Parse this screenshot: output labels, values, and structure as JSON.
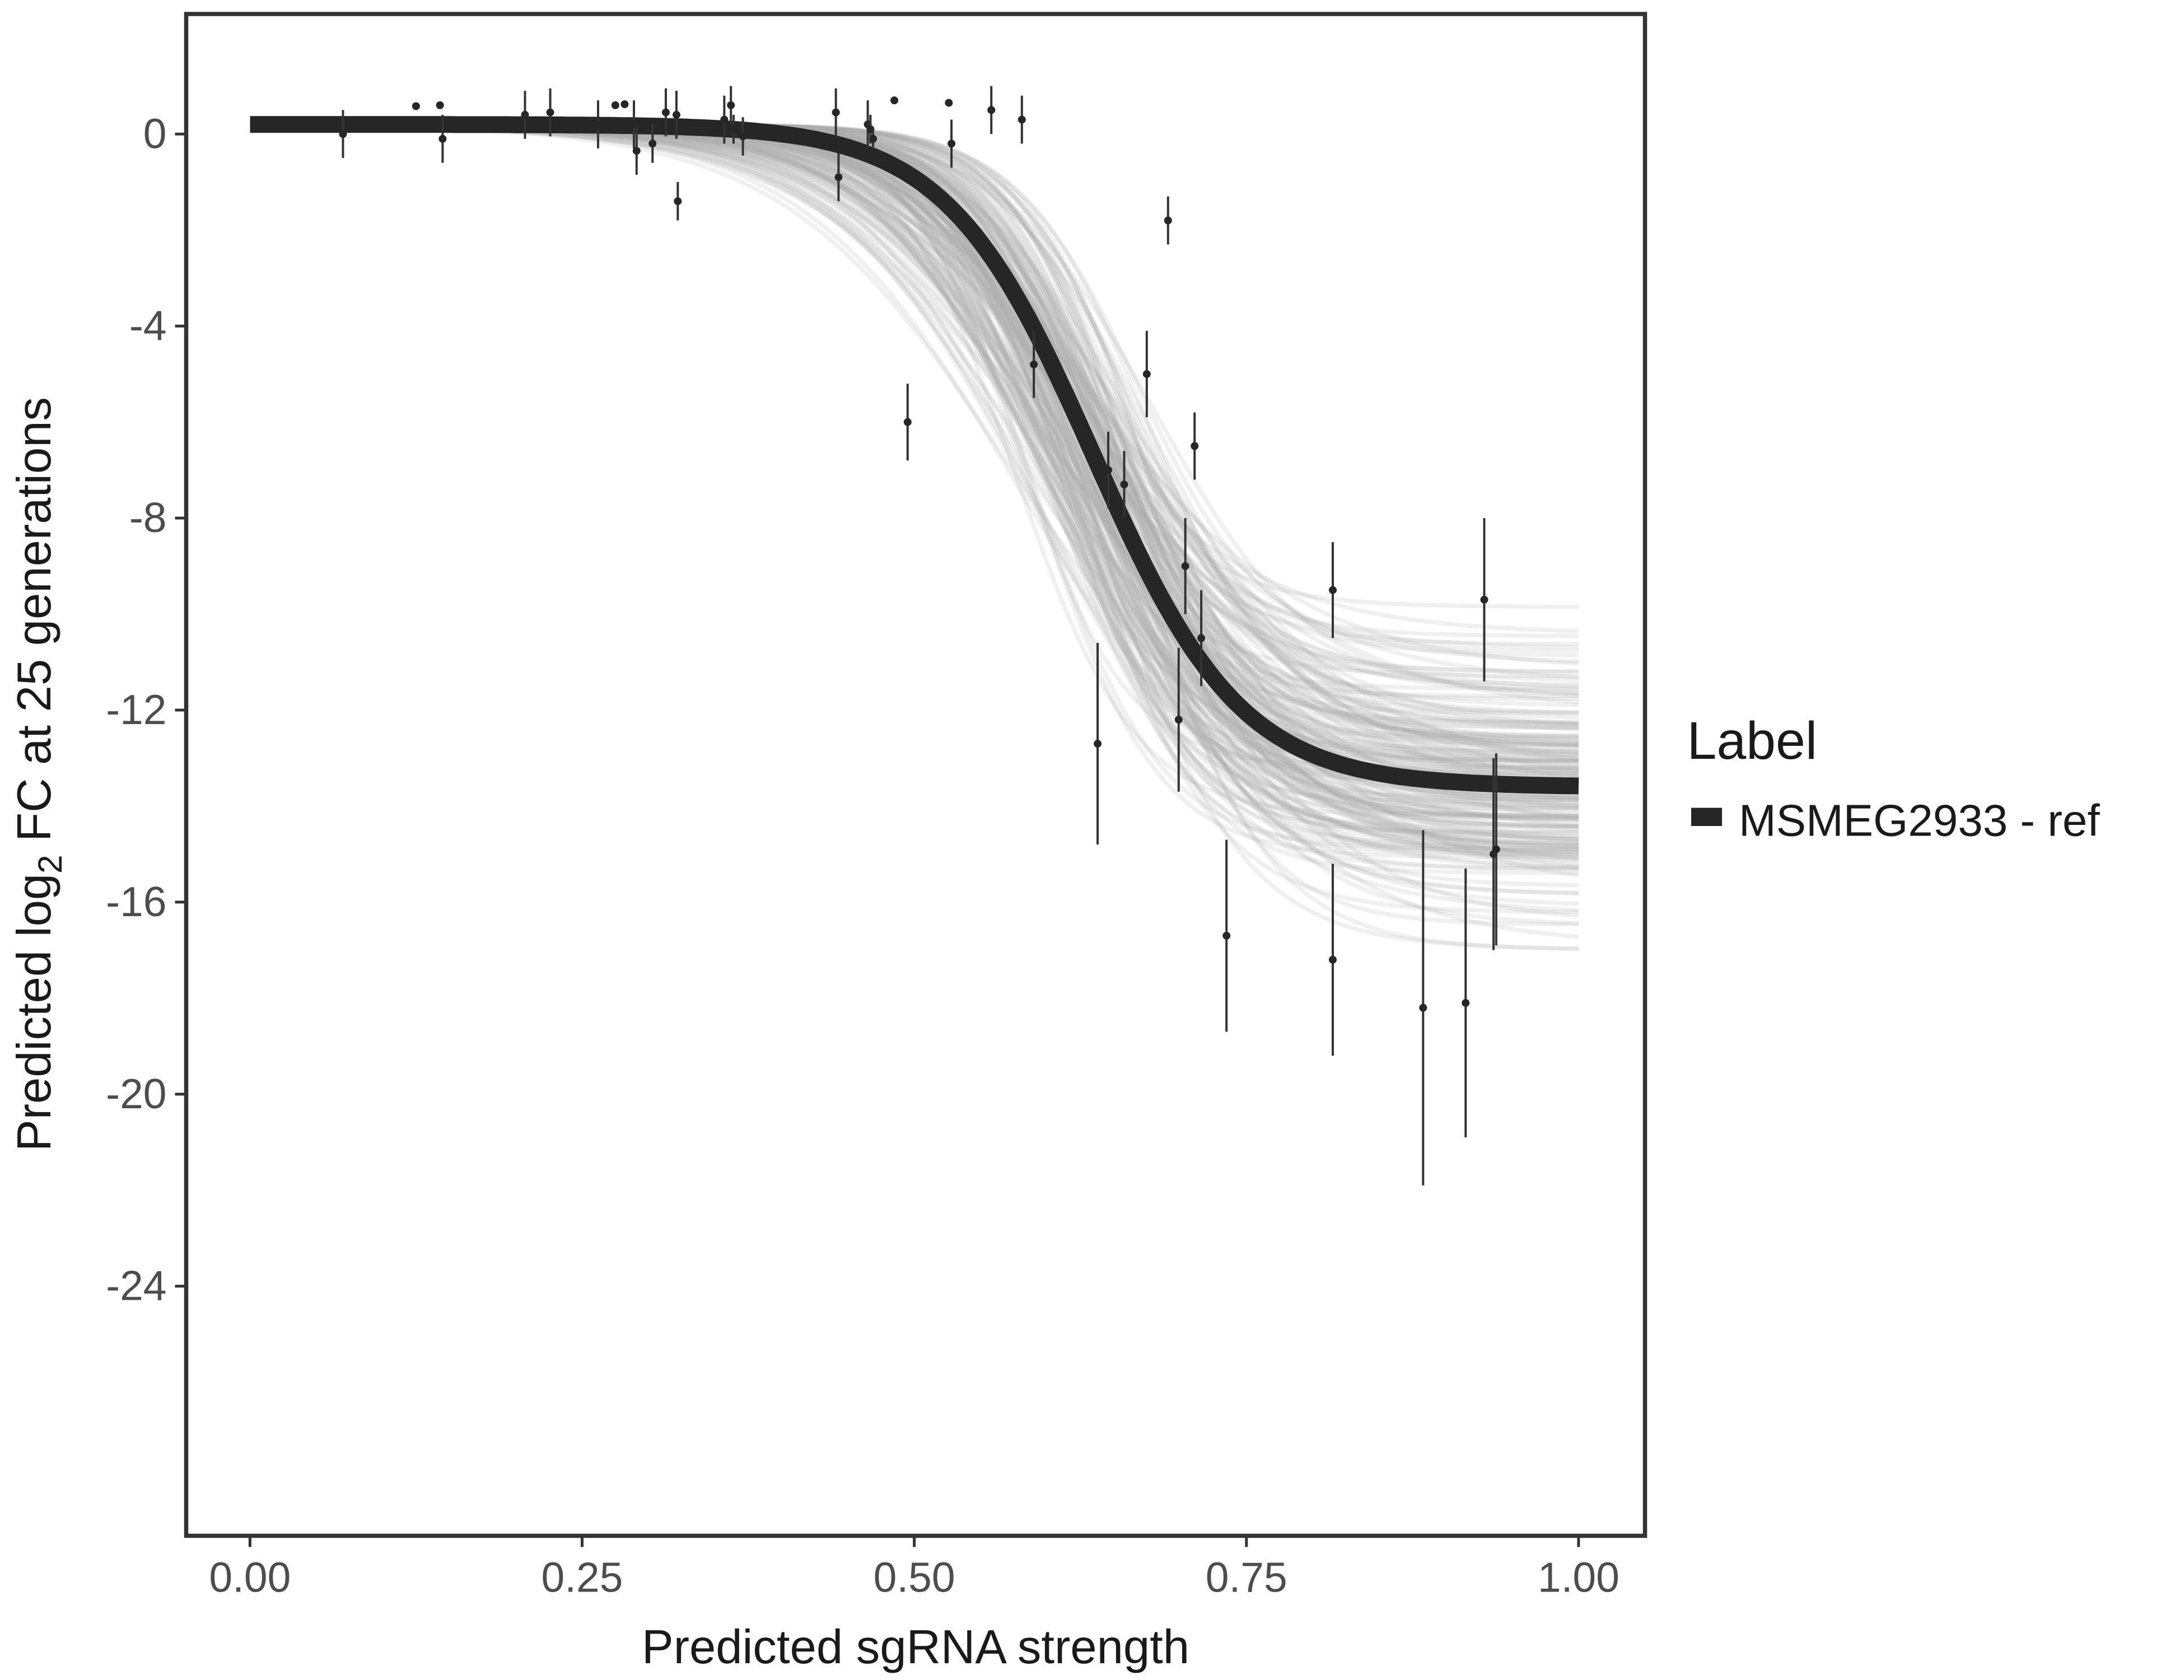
{
  "chart_data": {
    "type": "scatter",
    "title": "",
    "xlabel": "Predicted sgRNA strength",
    "ylabel": {
      "prefix": "Predicted  log",
      "subscript": "2",
      "suffix": " FC at 25 generations"
    },
    "xlim": [
      -0.048,
      1.05
    ],
    "ylim": [
      -29.2,
      2.5
    ],
    "xticks": [
      0,
      0.25,
      0.5,
      0.75,
      1
    ],
    "xtick_labels": [
      "0.00",
      "0.25",
      "0.50",
      "0.75",
      "1.00"
    ],
    "yticks": [
      0,
      -4,
      -8,
      -12,
      -16,
      -20,
      -24
    ],
    "ytick_labels": [
      "0",
      "-4",
      "-8",
      "-12",
      "-16",
      "-20",
      "-24"
    ],
    "grid": false,
    "legend": {
      "title": "Label",
      "position": "right",
      "entries": [
        {
          "label": "MSMEG2933 - ref",
          "color": "#262626"
        }
      ]
    },
    "fit_curve": {
      "model": "logistic",
      "top": 0.2,
      "bottom": -13.6,
      "midpoint": 0.635,
      "slope": 18,
      "x_range": [
        0,
        1
      ],
      "color": "#262626"
    },
    "posterior_draws": {
      "count": 200,
      "midpoint_range": [
        0.57,
        0.69
      ],
      "slope_range": [
        11,
        24
      ],
      "bottom_range": [
        -18,
        -9.4
      ],
      "color": "#aaaaaa"
    },
    "points": [
      {
        "x": 0.07,
        "y": 0.0,
        "err": 0.5
      },
      {
        "x": 0.125,
        "y": 0.58,
        "err": 0
      },
      {
        "x": 0.143,
        "y": 0.6,
        "err": 0
      },
      {
        "x": 0.145,
        "y": -0.1,
        "err": 0.5
      },
      {
        "x": 0.207,
        "y": 0.4,
        "err": 0.5
      },
      {
        "x": 0.226,
        "y": 0.45,
        "err": 0.5
      },
      {
        "x": 0.262,
        "y": 0.2,
        "err": 0.5
      },
      {
        "x": 0.275,
        "y": 0.6,
        "err": 0
      },
      {
        "x": 0.282,
        "y": 0.62,
        "err": 0
      },
      {
        "x": 0.289,
        "y": 0.2,
        "err": 0.5
      },
      {
        "x": 0.291,
        "y": -0.35,
        "err": 0.5
      },
      {
        "x": 0.303,
        "y": -0.2,
        "err": 0.4
      },
      {
        "x": 0.313,
        "y": 0.45,
        "err": 0.5
      },
      {
        "x": 0.321,
        "y": 0.4,
        "err": 0.5
      },
      {
        "x": 0.322,
        "y": -1.4,
        "err": 0.4
      },
      {
        "x": 0.357,
        "y": 0.3,
        "err": 0.5
      },
      {
        "x": 0.362,
        "y": 0.6,
        "err": 0.4
      },
      {
        "x": 0.364,
        "y": 0.1,
        "err": 0.3
      },
      {
        "x": 0.371,
        "y": -0.05,
        "err": 0.4
      },
      {
        "x": 0.441,
        "y": 0.45,
        "err": 0.5
      },
      {
        "x": 0.443,
        "y": -0.9,
        "err": 0.5
      },
      {
        "x": 0.465,
        "y": 0.2,
        "err": 0.5
      },
      {
        "x": 0.467,
        "y": 0.1,
        "err": 0.3
      },
      {
        "x": 0.469,
        "y": -0.1,
        "err": 0.2
      },
      {
        "x": 0.485,
        "y": 0.7,
        "err": 0
      },
      {
        "x": 0.495,
        "y": -6.0,
        "err": 0.8
      },
      {
        "x": 0.526,
        "y": 0.65,
        "err": 0
      },
      {
        "x": 0.528,
        "y": -0.2,
        "err": 0.5
      },
      {
        "x": 0.558,
        "y": 0.5,
        "err": 0.5
      },
      {
        "x": 0.581,
        "y": 0.3,
        "err": 0.5
      },
      {
        "x": 0.59,
        "y": -4.8,
        "err": 0.7
      },
      {
        "x": 0.638,
        "y": -12.7,
        "err": 2.1
      },
      {
        "x": 0.646,
        "y": -7.0,
        "err": 0.8
      },
      {
        "x": 0.658,
        "y": -7.3,
        "err": 0.7
      },
      {
        "x": 0.675,
        "y": -5.0,
        "err": 0.9
      },
      {
        "x": 0.691,
        "y": -1.8,
        "err": 0.5
      },
      {
        "x": 0.699,
        "y": -12.2,
        "err": 1.5
      },
      {
        "x": 0.704,
        "y": -9.0,
        "err": 1.0
      },
      {
        "x": 0.711,
        "y": -6.5,
        "err": 0.7
      },
      {
        "x": 0.716,
        "y": -10.5,
        "err": 1.0
      },
      {
        "x": 0.735,
        "y": -16.7,
        "err": 2.0
      },
      {
        "x": 0.815,
        "y": -9.5,
        "err": 1.0
      },
      {
        "x": 0.815,
        "y": -17.2,
        "err": 2.0
      },
      {
        "x": 0.883,
        "y": -18.2,
        "err": 3.7
      },
      {
        "x": 0.915,
        "y": -18.1,
        "err": 2.8
      },
      {
        "x": 0.929,
        "y": -9.7,
        "err": 1.7
      },
      {
        "x": 0.936,
        "y": -15.0,
        "err": 2.0
      },
      {
        "x": 0.938,
        "y": -14.9,
        "err": 2.0
      }
    ]
  }
}
